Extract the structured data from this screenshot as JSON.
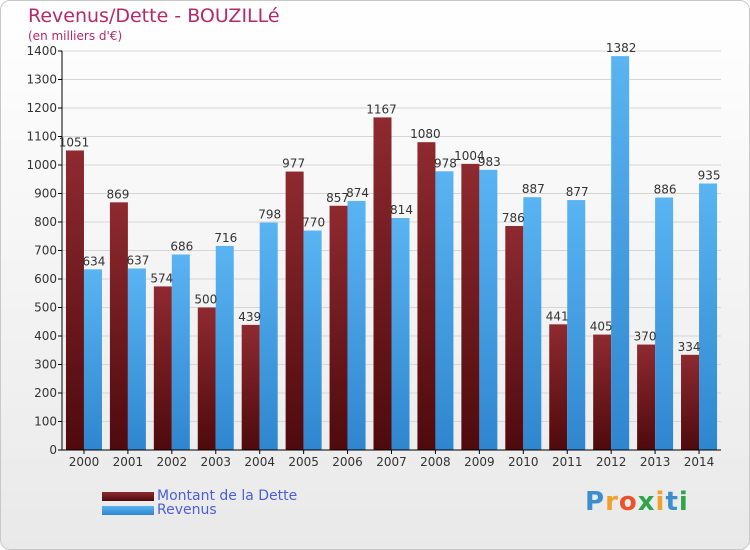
{
  "title": "Revenus/Dette - BOUZILLé",
  "subtitle": "(en milliers d'€)",
  "logo": {
    "text": "Proxiti",
    "letter_colors": [
      "#3b8fd1",
      "#f0a02c",
      "#e8532b",
      "#2fa54a",
      "#f0a02c",
      "#3b8fd1",
      "#2fa54a"
    ]
  },
  "colors": {
    "dette": "#7a1a1f",
    "revenus": "#4aa3e6",
    "grid": "#d6d6d6",
    "axis": "#000000"
  },
  "chart_data": {
    "type": "bar",
    "categories": [
      "2000",
      "2001",
      "2002",
      "2003",
      "2004",
      "2005",
      "2006",
      "2007",
      "2008",
      "2009",
      "2010",
      "2011",
      "2012",
      "2013",
      "2014"
    ],
    "series": [
      {
        "name": "Montant de la Dette",
        "values": [
          1051,
          869,
          574,
          500,
          439,
          977,
          857,
          1167,
          1080,
          1004,
          786,
          441,
          405,
          370,
          334
        ]
      },
      {
        "name": "Revenus",
        "values": [
          634,
          637,
          686,
          716,
          798,
          770,
          874,
          814,
          978,
          983,
          887,
          877,
          1382,
          886,
          935
        ]
      }
    ],
    "ylim": [
      0,
      1400
    ],
    "yticks": [
      0,
      100,
      200,
      300,
      400,
      500,
      600,
      700,
      800,
      900,
      1000,
      1100,
      1200,
      1300,
      1400
    ],
    "grid": true,
    "legend_position": "bottom-left"
  }
}
